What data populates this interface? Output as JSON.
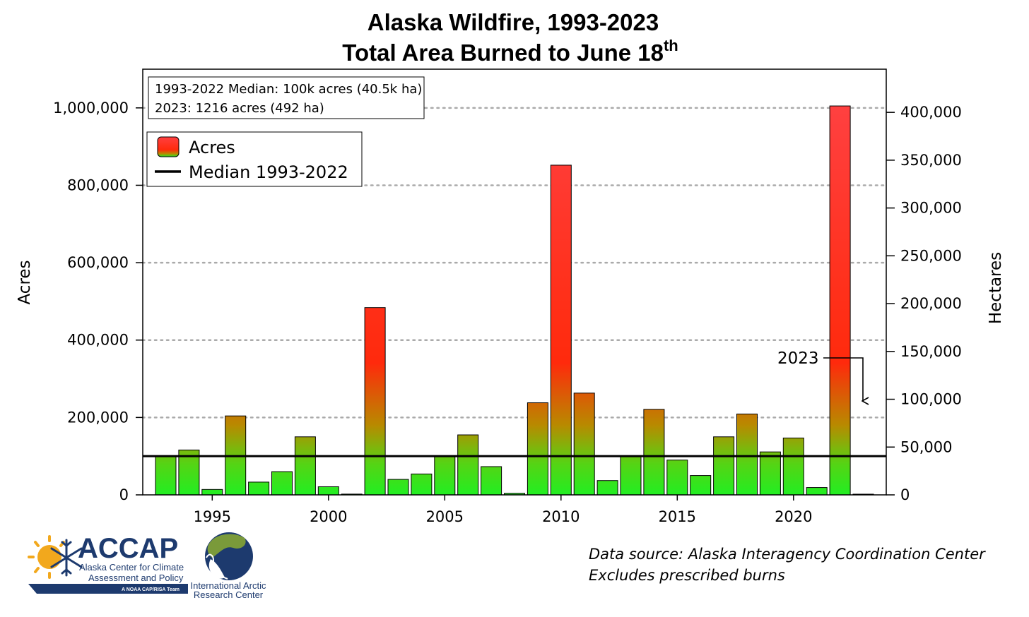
{
  "chart_data": {
    "type": "bar",
    "title": "Alaska Wildfire, 1993-2023",
    "subtitle_main": "Total Area Burned to June 18",
    "subtitle_sup": "th",
    "ylabel": "Acres",
    "y2label": "Hectares",
    "ylim": [
      0,
      1100000
    ],
    "y2lim": [
      0,
      445154
    ],
    "xlim": [
      1992.5,
      1993.5
    ],
    "x_ticks": [
      1995,
      2000,
      2005,
      2010,
      2015,
      2020
    ],
    "x_tick_labels": [
      "1995",
      "2000",
      "2005",
      "2010",
      "2015",
      "2020"
    ],
    "y_ticks": [
      0,
      200000,
      400000,
      600000,
      800000,
      1000000
    ],
    "y_tick_labels": [
      "0",
      "200,000",
      "400,000",
      "600,000",
      "800,000",
      "1,000,000"
    ],
    "y2_ticks": [
      0,
      50000,
      100000,
      150000,
      200000,
      250000,
      300000,
      350000,
      400000
    ],
    "y2_tick_labels": [
      "0",
      "50,000",
      "100,000",
      "150,000",
      "200,000",
      "250,000",
      "300,000",
      "350,000",
      "400,000"
    ],
    "grid": "horizontal dotted at left-axis ticks",
    "legend_position": "top-left",
    "years": [
      1993,
      1994,
      1995,
      1996,
      1997,
      1998,
      1999,
      2000,
      2001,
      2002,
      2003,
      2004,
      2005,
      2006,
      2007,
      2008,
      2009,
      2010,
      2011,
      2012,
      2013,
      2014,
      2015,
      2016,
      2017,
      2018,
      2019,
      2020,
      2021,
      2022,
      2023
    ],
    "series": [
      {
        "name": "Acres",
        "values": [
          100000,
          116000,
          14000,
          204000,
          33000,
          60000,
          150000,
          21000,
          2000,
          484000,
          40000,
          54000,
          100000,
          155000,
          73000,
          4000,
          238000,
          852000,
          263000,
          37000,
          100000,
          221000,
          90000,
          50000,
          150000,
          209000,
          111000,
          147000,
          19000,
          1005000,
          1216
        ]
      }
    ],
    "median": {
      "name": "Median 1993-2022",
      "value": 100000
    },
    "info_box": [
      "1993-2022 Median: 100k acres (40.5k ha)",
      "2023: 1216 acres (492 ha)"
    ],
    "annotation": {
      "text": "2023",
      "target_year": 2023
    },
    "colors": {
      "bar_top": "#ff3b3b",
      "bar_mid": "#ff2a10",
      "bar_low": "#c8b000",
      "bar_bottom": "#22ee22",
      "median": "#000000",
      "grid": "#aaaaaa"
    }
  },
  "source_lines": [
    "Data source: Alaska Interagency Coordination Center",
    "Excludes prescribed burns"
  ],
  "logos": {
    "accap": {
      "name": "ACCAP",
      "line1": "Alaska Center for Climate",
      "line2": "Assessment and Policy",
      "tagline": "A NOAA CAP/RISA Team",
      "colors": {
        "navy": "#1d3a6e",
        "sun": "#f2a81d"
      }
    },
    "iarc": {
      "line1": "International Arctic",
      "line2": "Research Center",
      "colors": {
        "ocean": "#1d3a6e",
        "land": "#7a9a3a"
      }
    }
  }
}
